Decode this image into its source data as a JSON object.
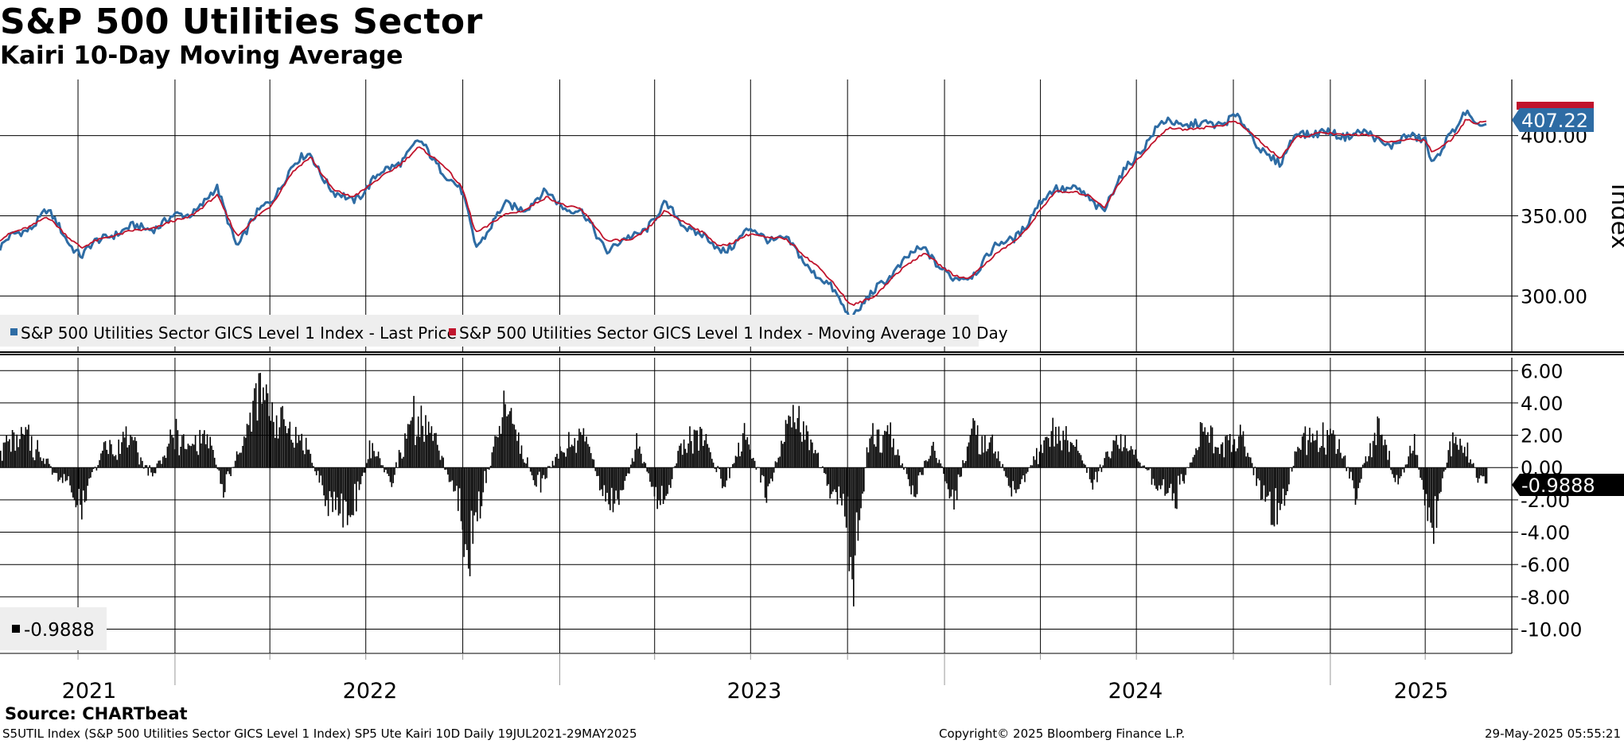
{
  "header": {
    "title": "S&P 500 Utilities Sector",
    "subtitle": "Kairi 10-Day Moving Average"
  },
  "footer": {
    "source": "Source: CHARTbeat",
    "description": "S5UTIL Index (S&P 500 Utilities Sector GICS Level 1 Index) SP5 Ute Kairi 10D  Daily 19JUL2021-29MAY2025",
    "copyright": "Copyright© 2025 Bloomberg Finance L.P.",
    "timestamp": "29-May-2025 05:55:21"
  },
  "colors": {
    "price": "#2e6ca4",
    "moving_average": "#c0142c",
    "kairi": "#000000",
    "grid": "#000000",
    "legend_bg": "#eeeeee"
  },
  "chart_data": [
    {
      "type": "line",
      "ylabel": "Index",
      "ylim": [
        265,
        435
      ],
      "yticks": [
        "300.00",
        "350.00",
        "400.00"
      ],
      "last_value_label": "407.22",
      "grid": true,
      "legend_position": "bottom-left",
      "series": [
        {
          "name": "S&P 500 Utilities Sector GICS Level 1 Index - Last Price",
          "x": [
            "2021-07-19",
            "2021-09-01",
            "2021-10-05",
            "2021-11-01",
            "2021-12-01",
            "2022-01-10",
            "2022-02-10",
            "2022-03-01",
            "2022-04-01",
            "2022-04-20",
            "2022-05-10",
            "2022-06-01",
            "2022-06-17",
            "2022-07-15",
            "2022-08-20",
            "2022-09-12",
            "2022-10-01",
            "2022-10-13",
            "2022-11-10",
            "2022-12-01",
            "2022-12-20",
            "2023-01-20",
            "2023-02-15",
            "2023-03-10",
            "2023-04-10",
            "2023-05-05",
            "2023-06-01",
            "2023-07-01",
            "2023-08-01",
            "2023-09-01",
            "2023-10-04",
            "2023-10-25",
            "2023-11-15",
            "2023-12-15",
            "2024-01-10",
            "2024-01-22",
            "2024-02-20",
            "2024-03-20",
            "2024-04-15",
            "2024-05-20",
            "2024-06-01",
            "2024-07-01",
            "2024-08-01",
            "2024-09-01",
            "2024-10-01",
            "2024-10-25",
            "2024-11-15",
            "2024-12-01",
            "2024-12-20",
            "2025-01-20",
            "2025-02-15",
            "2025-03-01",
            "2025-04-01",
            "2025-04-08",
            "2025-04-25",
            "2025-05-10",
            "2025-05-20",
            "2025-05-29"
          ],
          "values": [
            330,
            352,
            325,
            340,
            342,
            350,
            365,
            333,
            360,
            378,
            390,
            362,
            360,
            375,
            395,
            380,
            362,
            332,
            355,
            357,
            363,
            352,
            330,
            335,
            355,
            343,
            328,
            340,
            335,
            315,
            288,
            300,
            318,
            330,
            308,
            312,
            330,
            345,
            370,
            360,
            355,
            390,
            410,
            405,
            412,
            395,
            380,
            405,
            400,
            402,
            398,
            395,
            400,
            383,
            398,
            418,
            405,
            407.22
          ]
        },
        {
          "name": "S&P 500 Utilities Sector GICS Level 1 Index - Moving Average 10 Day",
          "x": [
            "2021-07-19",
            "2021-09-01",
            "2021-10-05",
            "2021-11-01",
            "2021-12-01",
            "2022-01-10",
            "2022-02-10",
            "2022-03-01",
            "2022-04-01",
            "2022-04-20",
            "2022-05-10",
            "2022-06-01",
            "2022-06-17",
            "2022-07-15",
            "2022-08-20",
            "2022-09-12",
            "2022-10-01",
            "2022-10-13",
            "2022-11-10",
            "2022-12-01",
            "2022-12-20",
            "2023-01-20",
            "2023-02-15",
            "2023-03-10",
            "2023-04-10",
            "2023-05-05",
            "2023-06-01",
            "2023-07-01",
            "2023-08-01",
            "2023-09-01",
            "2023-10-04",
            "2023-10-25",
            "2023-11-15",
            "2023-12-15",
            "2024-01-10",
            "2024-01-22",
            "2024-02-20",
            "2024-03-20",
            "2024-04-15",
            "2024-05-20",
            "2024-06-01",
            "2024-07-01",
            "2024-08-01",
            "2024-09-01",
            "2024-10-01",
            "2024-10-25",
            "2024-11-15",
            "2024-12-01",
            "2024-12-20",
            "2025-01-20",
            "2025-02-15",
            "2025-03-01",
            "2025-04-01",
            "2025-04-08",
            "2025-04-25",
            "2025-05-10",
            "2025-05-20",
            "2025-05-29"
          ],
          "values": [
            335,
            349,
            330,
            338,
            341,
            348,
            362,
            338,
            356,
            375,
            387,
            365,
            362,
            373,
            392,
            383,
            366,
            340,
            350,
            355,
            361,
            354,
            335,
            334,
            352,
            345,
            331,
            338,
            336,
            320,
            295,
            298,
            314,
            327,
            312,
            311,
            326,
            342,
            366,
            362,
            356,
            385,
            405,
            404,
            409,
            398,
            385,
            400,
            401,
            401,
            399,
            396,
            398,
            390,
            396,
            411,
            408,
            409
          ]
        }
      ]
    },
    {
      "type": "bar",
      "series_name": "-0.9888",
      "ylim": [
        -11.5,
        6.8
      ],
      "yticks": [
        "6.00",
        "4.00",
        "2.00",
        "0.00",
        "-2.00",
        "-4.00",
        "-6.00",
        "-8.00",
        "-10.00"
      ],
      "last_value_label": "-0.9888",
      "grid": true,
      "legend_position": "bottom-left",
      "anchors": {
        "x": [
          "2021-07-19",
          "2021-08-15",
          "2021-09-20",
          "2021-10-05",
          "2021-10-25",
          "2021-11-20",
          "2021-12-10",
          "2022-01-01",
          "2022-01-15",
          "2022-01-28",
          "2022-02-15",
          "2022-03-08",
          "2022-03-20",
          "2022-04-15",
          "2022-05-05",
          "2022-05-25",
          "2022-06-16",
          "2022-07-05",
          "2022-07-25",
          "2022-08-15",
          "2022-09-01",
          "2022-09-25",
          "2022-10-05",
          "2022-10-20",
          "2022-11-10",
          "2022-12-10",
          "2023-01-05",
          "2023-01-25",
          "2023-02-10",
          "2023-02-25",
          "2023-03-15",
          "2023-04-05",
          "2023-04-25",
          "2023-05-15",
          "2023-06-05",
          "2023-06-25",
          "2023-07-15",
          "2023-08-10",
          "2023-08-25",
          "2023-09-15",
          "2023-09-28",
          "2023-10-06",
          "2023-10-20",
          "2023-11-10",
          "2023-12-01",
          "2023-12-20",
          "2024-01-10",
          "2024-01-25",
          "2024-02-15",
          "2024-03-05",
          "2024-04-10",
          "2024-04-25",
          "2024-05-20",
          "2024-06-10",
          "2024-06-25",
          "2024-07-15",
          "2024-08-05",
          "2024-09-01",
          "2024-09-20",
          "2024-10-10",
          "2024-10-30",
          "2024-11-15",
          "2024-12-01",
          "2024-12-20",
          "2025-01-10",
          "2025-01-25",
          "2025-02-15",
          "2025-03-05",
          "2025-03-20",
          "2025-04-08",
          "2025-04-25",
          "2025-05-10",
          "2025-05-20",
          "2025-05-29"
        ],
        "values": [
          1.5,
          2.2,
          -1.8,
          -2.5,
          1.5,
          2.0,
          -0.8,
          2.5,
          1.2,
          2.8,
          -1.5,
          2.0,
          5.5,
          3.2,
          1.5,
          -2.5,
          -3.8,
          1.5,
          -1.0,
          4.0,
          2.5,
          -2.0,
          -7.5,
          -1.5,
          4.5,
          -1.5,
          1.5,
          2.5,
          -1.8,
          -2.5,
          1.8,
          -3.5,
          1.5,
          2.8,
          -1.5,
          2.5,
          -1.8,
          3.8,
          2.0,
          -1.5,
          -2.5,
          -8.3,
          1.8,
          2.8,
          -2.0,
          1.5,
          -2.5,
          2.5,
          1.8,
          -2.0,
          2.5,
          3.0,
          -1.2,
          2.0,
          1.5,
          -1.0,
          -2.5,
          2.5,
          1.8,
          2.0,
          -2.5,
          -3.5,
          1.8,
          2.5,
          1.5,
          -2.0,
          3.5,
          -1.5,
          2.0,
          -4.8,
          2.0,
          1.5,
          -0.5,
          -0.9888
        ]
      }
    }
  ],
  "axes": {
    "x_year_labels": [
      "2021",
      "2022",
      "2023",
      "2024",
      "2025"
    ]
  }
}
